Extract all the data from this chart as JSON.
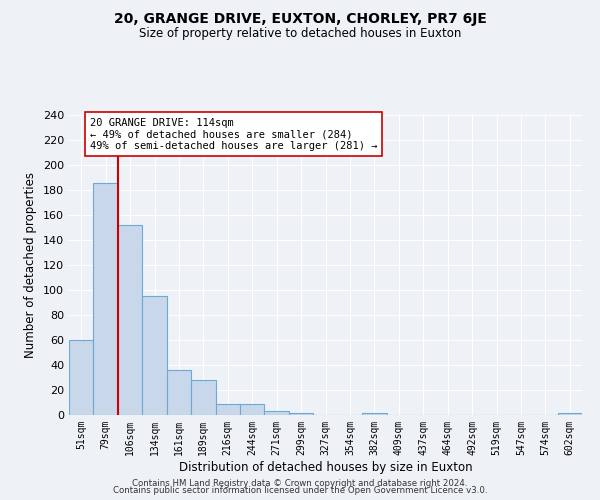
{
  "title": "20, GRANGE DRIVE, EUXTON, CHORLEY, PR7 6JE",
  "subtitle": "Size of property relative to detached houses in Euxton",
  "xlabel": "Distribution of detached houses by size in Euxton",
  "ylabel": "Number of detached properties",
  "bin_labels": [
    "51sqm",
    "79sqm",
    "106sqm",
    "134sqm",
    "161sqm",
    "189sqm",
    "216sqm",
    "244sqm",
    "271sqm",
    "299sqm",
    "327sqm",
    "354sqm",
    "382sqm",
    "409sqm",
    "437sqm",
    "464sqm",
    "492sqm",
    "519sqm",
    "547sqm",
    "574sqm",
    "602sqm"
  ],
  "bar_heights": [
    60,
    186,
    152,
    95,
    36,
    28,
    9,
    9,
    3,
    2,
    0,
    0,
    2,
    0,
    0,
    0,
    0,
    0,
    0,
    0,
    2
  ],
  "bar_color": "#c8d8ea",
  "bar_edge_color": "#6aaad4",
  "vline_color": "#cc0000",
  "annotation_title": "20 GRANGE DRIVE: 114sqm",
  "annotation_line1": "← 49% of detached houses are smaller (284)",
  "annotation_line2": "49% of semi-detached houses are larger (281) →",
  "annotation_box_color": "#ffffff",
  "annotation_box_edge": "#cc0000",
  "ylim": [
    0,
    240
  ],
  "yticks": [
    0,
    20,
    40,
    60,
    80,
    100,
    120,
    140,
    160,
    180,
    200,
    220,
    240
  ],
  "footer1": "Contains HM Land Registry data © Crown copyright and database right 2024.",
  "footer2": "Contains public sector information licensed under the Open Government Licence v3.0.",
  "bg_color": "#eef2f6",
  "plot_bg_color": "#eef2f6",
  "grid_color": "#ffffff"
}
